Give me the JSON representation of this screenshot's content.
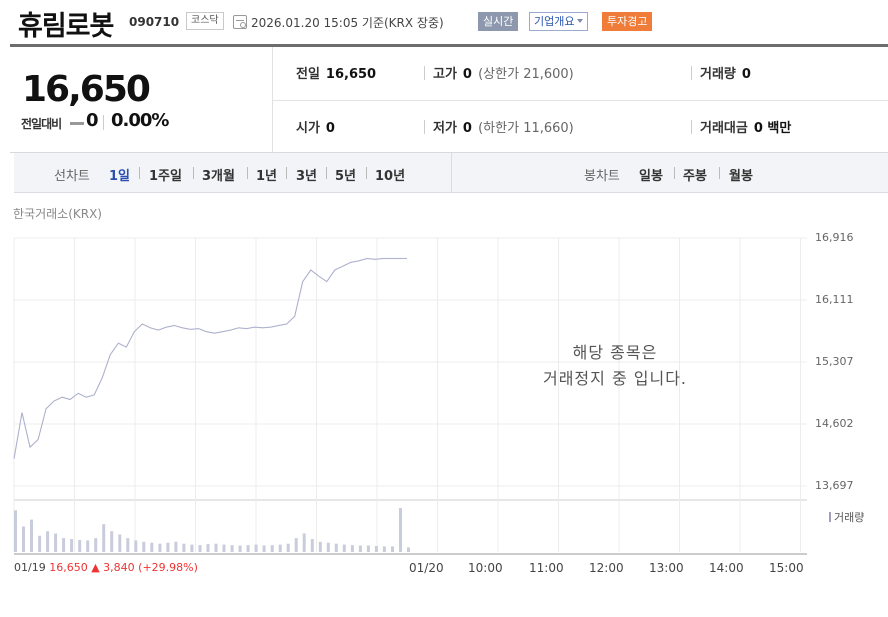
{
  "header": {
    "stock_name": "휴림로봇",
    "stock_code": "090710",
    "market": "코스닥",
    "date_info": "2026.01.20 15:05 기준(KRX 장중)",
    "realtime_button": "실시간",
    "company_button": "기업개요",
    "warning_button": "투자경고"
  },
  "quote": {
    "price": "16,650",
    "change_label": "전일대비",
    "change_value": "0",
    "change_pct": "0.00%",
    "prev_close_label": "전일",
    "prev_close": "16,650",
    "high_label": "고가",
    "high": "0",
    "upper_limit": "(상한가 21,600)",
    "volume_label": "거래량",
    "volume": "0",
    "open_label": "시가",
    "open": "0",
    "low_label": "저가",
    "low": "0",
    "lower_limit": "(하한가 11,660)",
    "amount_label": "거래대금",
    "amount": "0 백만"
  },
  "tabs": {
    "line_label": "선차트",
    "line_items": [
      "1일",
      "1주일",
      "3개월",
      "1년",
      "3년",
      "5년",
      "10년"
    ],
    "candle_label": "봉차트",
    "candle_items": [
      "일봉",
      "주봉",
      "월봉"
    ]
  },
  "chart": {
    "source": "한국거래소(KRX)",
    "halt_line1": "해당 종목은",
    "halt_line2": "거래정지 중 입니다.",
    "volume_legend": "거래량",
    "prev_day_date": "01/19",
    "prev_day_price": "16,650",
    "prev_day_change": "▲ 3,840",
    "prev_day_pct": "(+29.98%)"
  },
  "chart_data": {
    "type": "line",
    "y_ticks": [
      "16,916",
      "16,111",
      "15,307",
      "14,602",
      "13,697"
    ],
    "ylim": [
      13697,
      16916
    ],
    "x_ticks": [
      "01/20",
      "10:00",
      "11:00",
      "12:00",
      "13:00",
      "14:00",
      "15:00"
    ],
    "price_series": [
      [
        0,
        14050
      ],
      [
        1,
        14650
      ],
      [
        2,
        14200
      ],
      [
        3,
        14300
      ],
      [
        4,
        14700
      ],
      [
        5,
        14800
      ],
      [
        6,
        14850
      ],
      [
        7,
        14820
      ],
      [
        8,
        14900
      ],
      [
        9,
        14850
      ],
      [
        10,
        14880
      ],
      [
        11,
        15100
      ],
      [
        12,
        15400
      ],
      [
        13,
        15550
      ],
      [
        14,
        15500
      ],
      [
        15,
        15700
      ],
      [
        16,
        15800
      ],
      [
        17,
        15750
      ],
      [
        18,
        15720
      ],
      [
        19,
        15760
      ],
      [
        20,
        15780
      ],
      [
        21,
        15750
      ],
      [
        22,
        15730
      ],
      [
        23,
        15740
      ],
      [
        24,
        15700
      ],
      [
        25,
        15680
      ],
      [
        26,
        15700
      ],
      [
        27,
        15720
      ],
      [
        28,
        15750
      ],
      [
        29,
        15740
      ],
      [
        30,
        15760
      ],
      [
        31,
        15750
      ],
      [
        32,
        15760
      ],
      [
        33,
        15780
      ],
      [
        34,
        15800
      ],
      [
        35,
        15900
      ],
      [
        36,
        16350
      ],
      [
        37,
        16500
      ],
      [
        38,
        16420
      ],
      [
        39,
        16350
      ],
      [
        40,
        16500
      ],
      [
        41,
        16550
      ],
      [
        42,
        16600
      ],
      [
        43,
        16620
      ],
      [
        44,
        16650
      ],
      [
        45,
        16640
      ],
      [
        46,
        16650
      ],
      [
        47,
        16650
      ],
      [
        48,
        16650
      ],
      [
        49,
        16650
      ]
    ],
    "volume_series": [
      90,
      55,
      70,
      35,
      45,
      40,
      30,
      28,
      26,
      25,
      30,
      60,
      45,
      38,
      30,
      25,
      22,
      20,
      18,
      20,
      22,
      18,
      16,
      15,
      17,
      18,
      16,
      15,
      14,
      15,
      16,
      14,
      15,
      16,
      18,
      30,
      40,
      28,
      22,
      20,
      18,
      16,
      15,
      14,
      14,
      13,
      12,
      12,
      95,
      10
    ],
    "grid": true
  }
}
